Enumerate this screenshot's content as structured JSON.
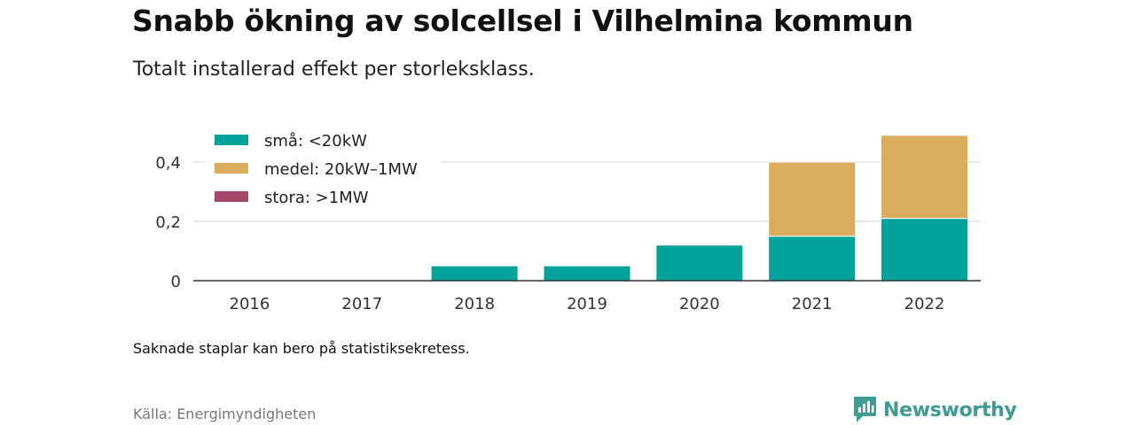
{
  "header": {
    "title": "Snabb ökning av solcellsel i Vilhelmina kommun",
    "subtitle": "Totalt installerad effekt per storleksklass."
  },
  "footer": {
    "note": "Saknade staplar kan bero på statistiksekretess.",
    "source": "Källa: Energimyndigheten",
    "brand": "Newsworthy",
    "brand_icon": "chart-speech-bubble-icon",
    "brand_color": "#3e9c92"
  },
  "chart_data": {
    "type": "bar",
    "stacked": true,
    "title": "Snabb ökning av solcellsel i Vilhelmina kommun",
    "subtitle": "Totalt installerad effekt per storleksklass.",
    "categories": [
      "2016",
      "2017",
      "2018",
      "2019",
      "2020",
      "2021",
      "2022"
    ],
    "series": [
      {
        "name": "små: <20kW",
        "color": "#00a39a",
        "values": [
          null,
          null,
          0.05,
          0.05,
          0.12,
          0.15,
          0.21
        ]
      },
      {
        "name": "medel: 20kW–1MW",
        "color": "#dbac5c",
        "values": [
          null,
          null,
          null,
          null,
          null,
          0.25,
          0.28
        ]
      },
      {
        "name": "stora: >1MW",
        "color": "#a6456a",
        "values": [
          null,
          null,
          null,
          null,
          null,
          null,
          null
        ]
      }
    ],
    "yticks": [
      {
        "value": 0,
        "label": "0"
      },
      {
        "value": 0.2,
        "label": "0,2"
      },
      {
        "value": 0.4,
        "label": "0,4"
      }
    ],
    "ylim": [
      0,
      0.5
    ],
    "xlabel": "",
    "ylabel": "",
    "grid": true,
    "legend_position": "top-left"
  }
}
